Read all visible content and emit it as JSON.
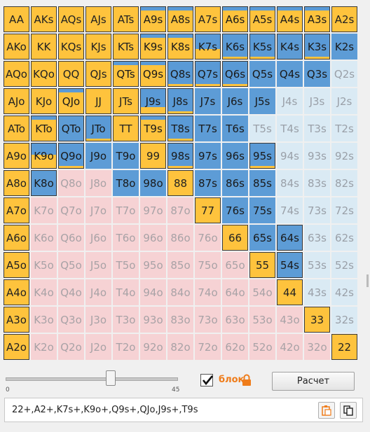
{
  "grid": {
    "rows": [
      [
        [
          "AA",
          "y",
          0
        ],
        [
          "AKs",
          "y",
          0
        ],
        [
          "AQs",
          "y",
          0
        ],
        [
          "AJs",
          "y",
          0
        ],
        [
          "ATs",
          "y",
          0
        ],
        [
          "A9s",
          "yb",
          0.85
        ],
        [
          "A8s",
          "yb",
          0.85
        ],
        [
          "A7s",
          "y",
          0
        ],
        [
          "A6s",
          "yb",
          0.85
        ],
        [
          "A5s",
          "yb",
          0.85
        ],
        [
          "A4s",
          "yb",
          0.85
        ],
        [
          "A3s",
          "yb",
          0.85
        ],
        [
          "A2s",
          "y",
          0
        ]
      ],
      [
        [
          "AKo",
          "y",
          0
        ],
        [
          "KK",
          "y",
          0
        ],
        [
          "KQs",
          "y",
          0
        ],
        [
          "KJs",
          "y",
          0
        ],
        [
          "KTs",
          "y",
          0
        ],
        [
          "K9s",
          "yb",
          0.85
        ],
        [
          "K8s",
          "yb",
          0.85
        ],
        [
          "K7s",
          "byb",
          0.4
        ],
        [
          "K6s",
          "byb",
          0.1
        ],
        [
          "K5s",
          "byb",
          0.1
        ],
        [
          "K4s",
          "bb",
          0
        ],
        [
          "K3s",
          "byb",
          0.1
        ],
        [
          "K2s",
          "b",
          0
        ]
      ],
      [
        [
          "AQo",
          "y",
          0
        ],
        [
          "KQo",
          "y",
          0
        ],
        [
          "QQ",
          "y",
          0
        ],
        [
          "QJs",
          "y",
          0
        ],
        [
          "QTs",
          "yb",
          0.85
        ],
        [
          "Q9s",
          "yb",
          0.85
        ],
        [
          "Q8s",
          "byb",
          0.1
        ],
        [
          "Q7s",
          "byb",
          0.1
        ],
        [
          "Q6s",
          "byb",
          0.1
        ],
        [
          "Q5s",
          "b",
          0
        ],
        [
          "Q4s",
          "b",
          0
        ],
        [
          "Q3s",
          "b",
          0
        ],
        [
          "Q2s",
          "lb",
          0
        ]
      ],
      [
        [
          "AJo",
          "y",
          0
        ],
        [
          "KJo",
          "y",
          0
        ],
        [
          "QJo",
          "yb",
          0.85
        ],
        [
          "JJ",
          "y",
          0
        ],
        [
          "JTs",
          "y",
          0
        ],
        [
          "J9s",
          "byb",
          0.25
        ],
        [
          "J8s",
          "byb",
          0.1
        ],
        [
          "J7s",
          "b",
          0
        ],
        [
          "J6s",
          "b",
          0
        ],
        [
          "J5s",
          "b",
          0
        ],
        [
          "J4s",
          "lb",
          0
        ],
        [
          "J3s",
          "lb",
          0
        ],
        [
          "J2s",
          "lb",
          0
        ]
      ],
      [
        [
          "ATo",
          "y",
          0
        ],
        [
          "KTo",
          "yb",
          0.85
        ],
        [
          "QTo",
          "bb",
          0
        ],
        [
          "JTo",
          "byb",
          0.1
        ],
        [
          "TT",
          "y",
          0
        ],
        [
          "T9s",
          "yb",
          0.85
        ],
        [
          "T8s",
          "byb",
          0.1
        ],
        [
          "T7s",
          "b",
          0
        ],
        [
          "T6s",
          "b",
          0
        ],
        [
          "T5s",
          "lb",
          0
        ],
        [
          "T4s",
          "lb",
          0
        ],
        [
          "T3s",
          "lb",
          0
        ],
        [
          "T2s",
          "lb",
          0
        ]
      ],
      [
        [
          "A9o",
          "y",
          0
        ],
        [
          "K9o",
          "yb",
          0.55
        ],
        [
          "Q9o",
          "byb",
          0.1
        ],
        [
          "J9o",
          "b",
          0
        ],
        [
          "T9o",
          "b",
          0
        ],
        [
          "99",
          "y",
          0
        ],
        [
          "98s",
          "byb",
          0.1
        ],
        [
          "97s",
          "b",
          0
        ],
        [
          "96s",
          "b",
          0
        ],
        [
          "95s",
          "byb",
          0.1
        ],
        [
          "94s",
          "lb",
          0
        ],
        [
          "93s",
          "lb",
          0
        ],
        [
          "92s",
          "lb",
          0
        ]
      ],
      [
        [
          "A8o",
          "y",
          0
        ],
        [
          "K8o",
          "bb",
          0
        ],
        [
          "Q8o",
          "p",
          0
        ],
        [
          "J8o",
          "p",
          0
        ],
        [
          "T8o",
          "b",
          0
        ],
        [
          "98o",
          "b",
          0
        ],
        [
          "88",
          "y",
          0
        ],
        [
          "87s",
          "b",
          0
        ],
        [
          "86s",
          "b",
          0
        ],
        [
          "85s",
          "b",
          0
        ],
        [
          "84s",
          "lb",
          0
        ],
        [
          "83s",
          "lb",
          0
        ],
        [
          "82s",
          "lb",
          0
        ]
      ],
      [
        [
          "A7o",
          "y",
          0
        ],
        [
          "K7o",
          "p",
          0
        ],
        [
          "Q7o",
          "p",
          0
        ],
        [
          "J7o",
          "p",
          0
        ],
        [
          "T7o",
          "p",
          0
        ],
        [
          "97o",
          "p",
          0
        ],
        [
          "87o",
          "p",
          0
        ],
        [
          "77",
          "y",
          0
        ],
        [
          "76s",
          "b",
          0
        ],
        [
          "75s",
          "b",
          0
        ],
        [
          "74s",
          "lb",
          0
        ],
        [
          "73s",
          "lb",
          0
        ],
        [
          "72s",
          "lb",
          0
        ]
      ],
      [
        [
          "A6o",
          "y",
          0
        ],
        [
          "K6o",
          "p",
          0
        ],
        [
          "Q6o",
          "p",
          0
        ],
        [
          "J6o",
          "p",
          0
        ],
        [
          "T6o",
          "p",
          0
        ],
        [
          "96o",
          "p",
          0
        ],
        [
          "86o",
          "p",
          0
        ],
        [
          "76o",
          "p",
          0
        ],
        [
          "66",
          "y",
          0
        ],
        [
          "65s",
          "b",
          0
        ],
        [
          "64s",
          "bb",
          0
        ],
        [
          "63s",
          "lb",
          0
        ],
        [
          "62s",
          "lb",
          0
        ]
      ],
      [
        [
          "A5o",
          "y",
          0
        ],
        [
          "K5o",
          "p",
          0
        ],
        [
          "Q5o",
          "p",
          0
        ],
        [
          "J5o",
          "p",
          0
        ],
        [
          "T5o",
          "p",
          0
        ],
        [
          "95o",
          "p",
          0
        ],
        [
          "85o",
          "p",
          0
        ],
        [
          "75o",
          "p",
          0
        ],
        [
          "65o",
          "p",
          0
        ],
        [
          "55",
          "y",
          0
        ],
        [
          "54s",
          "bb",
          0
        ],
        [
          "53s",
          "lb",
          0
        ],
        [
          "52s",
          "lb",
          0
        ]
      ],
      [
        [
          "A4o",
          "y",
          0
        ],
        [
          "K4o",
          "p",
          0
        ],
        [
          "Q4o",
          "p",
          0
        ],
        [
          "J4o",
          "p",
          0
        ],
        [
          "T4o",
          "p",
          0
        ],
        [
          "94o",
          "p",
          0
        ],
        [
          "84o",
          "p",
          0
        ],
        [
          "74o",
          "p",
          0
        ],
        [
          "64o",
          "p",
          0
        ],
        [
          "54o",
          "p",
          0
        ],
        [
          "44",
          "y",
          0
        ],
        [
          "43s",
          "lb",
          0
        ],
        [
          "42s",
          "lb",
          0
        ]
      ],
      [
        [
          "A3o",
          "y",
          0
        ],
        [
          "K3o",
          "p",
          0
        ],
        [
          "Q3o",
          "p",
          0
        ],
        [
          "J3o",
          "p",
          0
        ],
        [
          "T3o",
          "p",
          0
        ],
        [
          "93o",
          "p",
          0
        ],
        [
          "83o",
          "p",
          0
        ],
        [
          "73o",
          "p",
          0
        ],
        [
          "63o",
          "p",
          0
        ],
        [
          "53o",
          "p",
          0
        ],
        [
          "43o",
          "p",
          0
        ],
        [
          "33",
          "y",
          0
        ],
        [
          "32s",
          "lb",
          0
        ]
      ],
      [
        [
          "A2o",
          "y",
          0
        ],
        [
          "K2o",
          "p",
          0
        ],
        [
          "Q2o",
          "p",
          0
        ],
        [
          "J2o",
          "p",
          0
        ],
        [
          "T2o",
          "p",
          0
        ],
        [
          "92o",
          "p",
          0
        ],
        [
          "82o",
          "p",
          0
        ],
        [
          "72o",
          "p",
          0
        ],
        [
          "62o",
          "p",
          0
        ],
        [
          "52o",
          "p",
          0
        ],
        [
          "42o",
          "p",
          0
        ],
        [
          "32o",
          "p",
          0
        ],
        [
          "22",
          "y",
          0
        ]
      ]
    ]
  },
  "slider": {
    "min": "0",
    "max": "45"
  },
  "block": {
    "label": "блок",
    "checked": true
  },
  "calc_button": "Расчет",
  "range_text": "22+,A2+,K7s+,K9o+,Q9s+,QJo,J9s+,T9s",
  "colors": {
    "accent": "#ef7c1a",
    "yellow": "#fec33d",
    "blue": "#5d9cd6",
    "light_blue": "#daeaf4",
    "pink": "#f6d2d4"
  }
}
